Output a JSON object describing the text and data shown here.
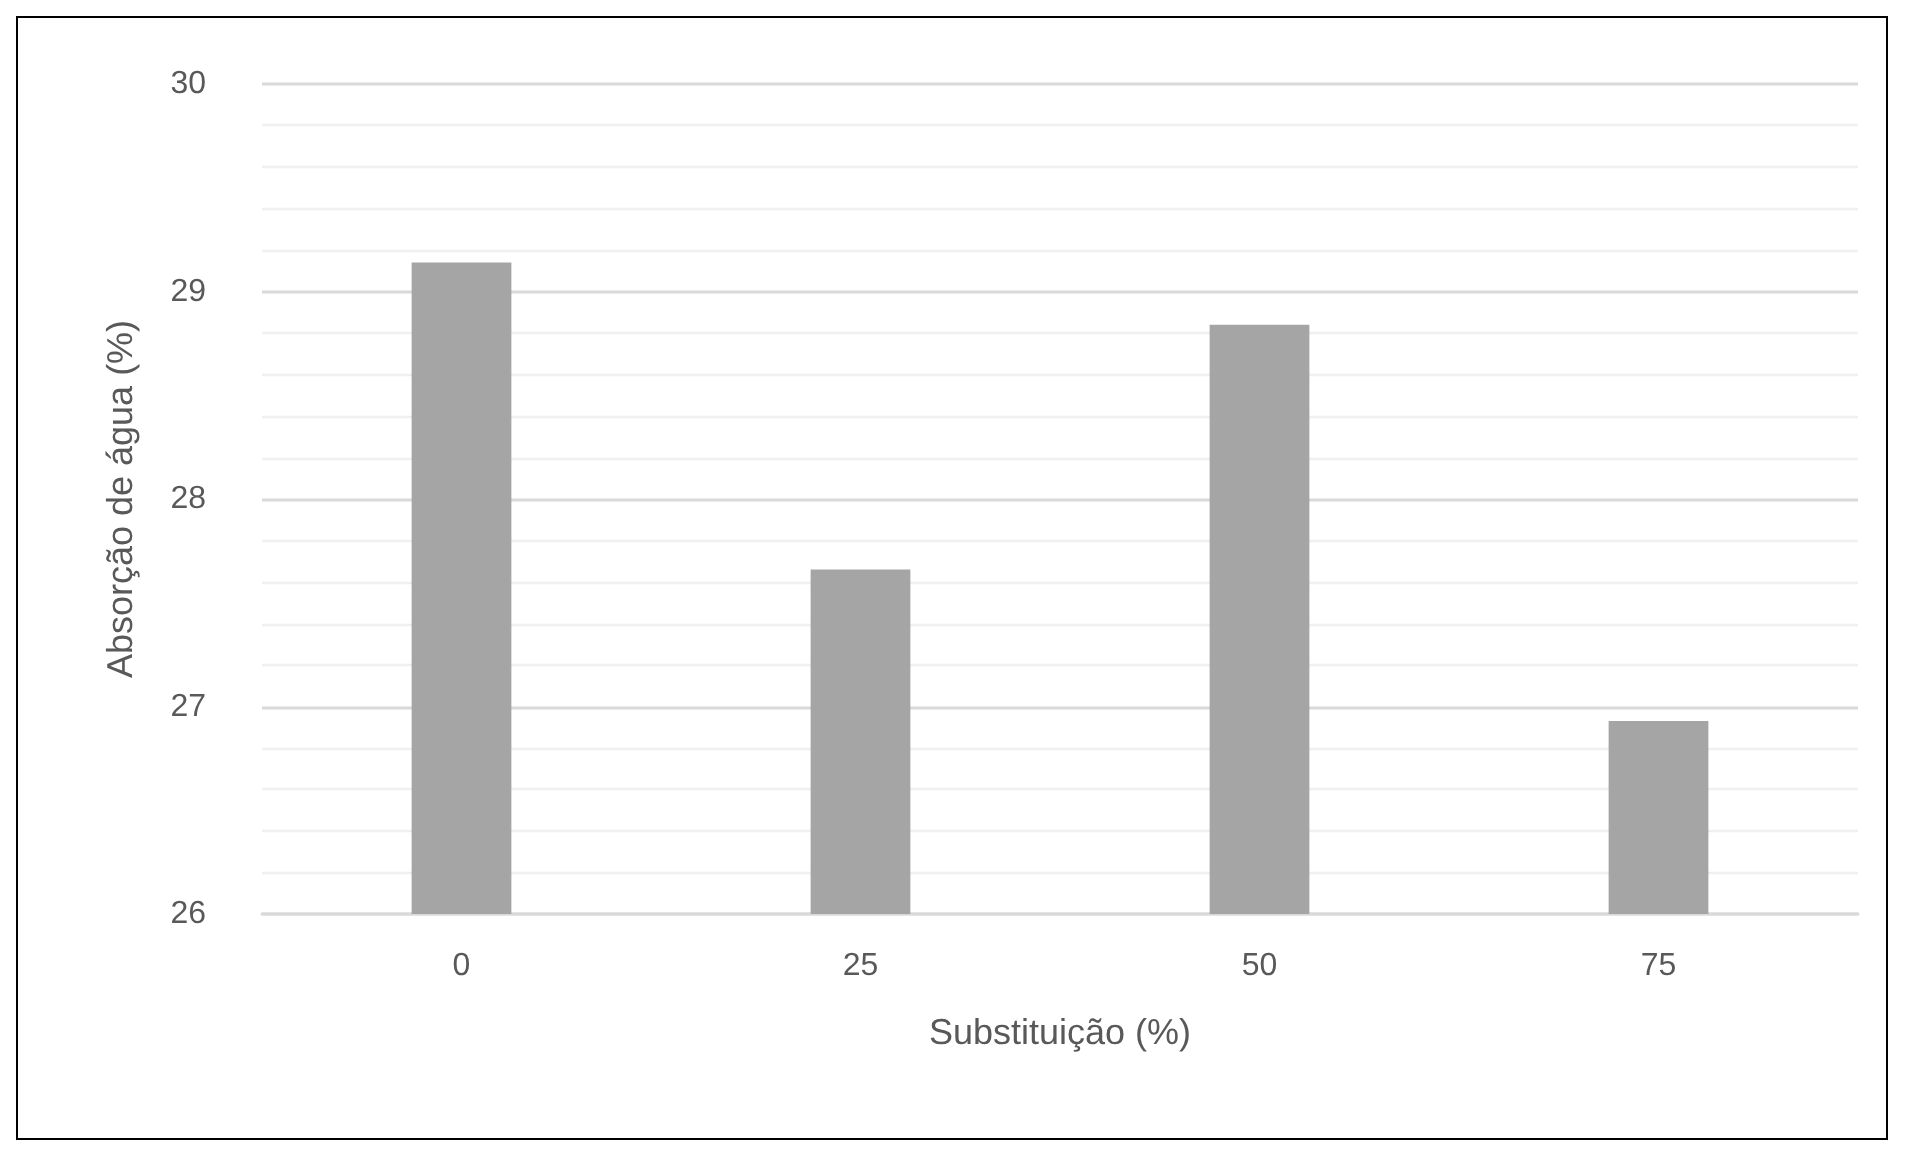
{
  "chart_data": {
    "type": "bar",
    "xlabel": "Substituição (%)",
    "ylabel": "Absorção de água (%)",
    "categories": [
      "0",
      "25",
      "50",
      "75"
    ],
    "values": [
      29.14,
      27.66,
      28.84,
      26.93
    ],
    "color": "#a5a5a5",
    "ylim": [
      26,
      30
    ],
    "yticks": [
      26,
      27,
      28,
      29,
      30
    ],
    "grid": "y"
  }
}
